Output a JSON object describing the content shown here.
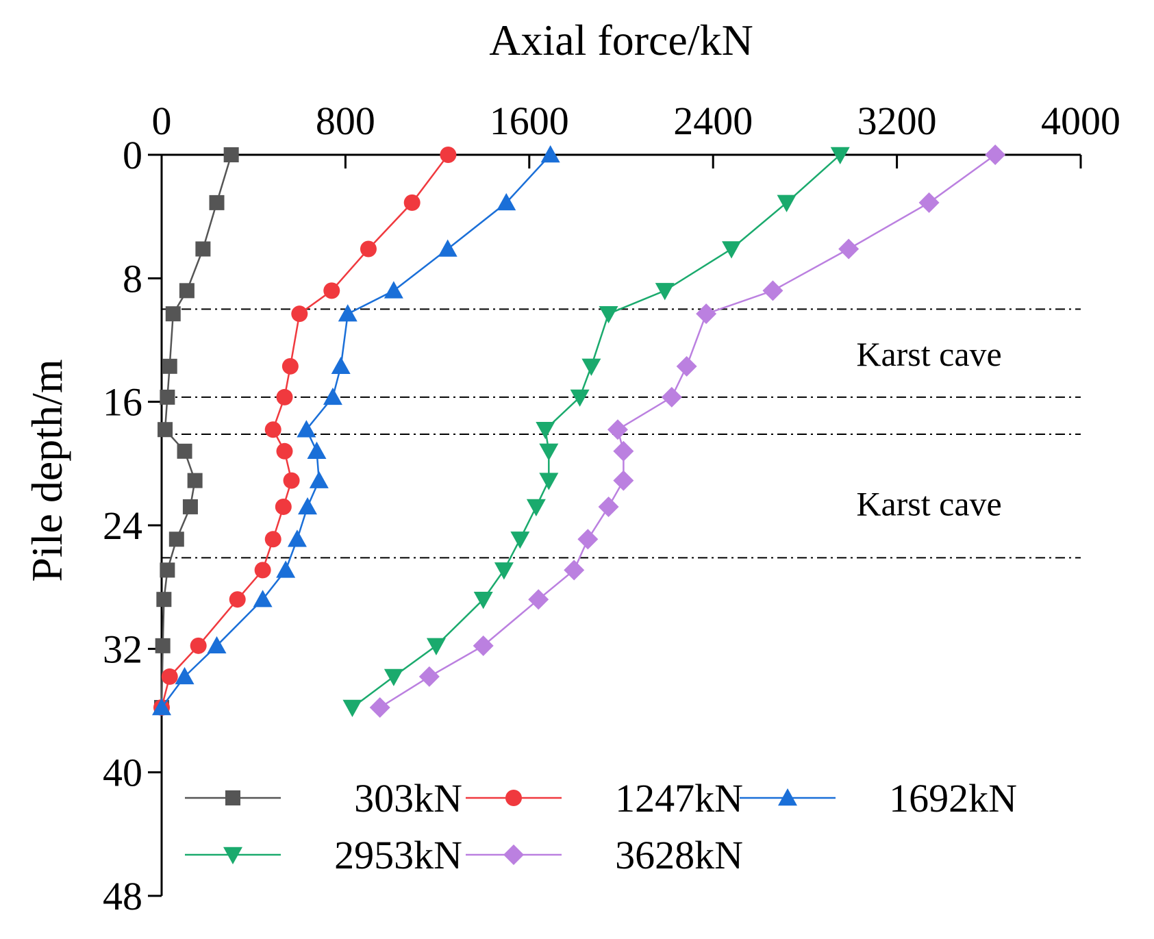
{
  "chart_data": {
    "type": "line",
    "title": "",
    "xlabel": "Axial force/kN",
    "ylabel": "Pile depth/m",
    "xlim": [
      0,
      4000
    ],
    "ylim": [
      0,
      48
    ],
    "xticks": [
      0,
      800,
      1600,
      2400,
      3200,
      4000
    ],
    "yticks": [
      0,
      8,
      16,
      24,
      32,
      40,
      48
    ],
    "x_axis_position": "top",
    "y_axis_inverted": true,
    "legend_position": "bottom-left inside",
    "reference_lines": [
      {
        "y": 10,
        "style": "dash-dot"
      },
      {
        "y": 15.7,
        "style": "dash-dot"
      },
      {
        "y": 18.1,
        "style": "dash-dot"
      },
      {
        "y": 26.1,
        "style": "dash-dot"
      }
    ],
    "annotations": [
      {
        "text": "Karst cave",
        "x": 3340,
        "y": 12.9
      },
      {
        "text": "Karst cave",
        "x": 3340,
        "y": 22.6
      }
    ],
    "series": [
      {
        "name": "303kN",
        "color": "#555555",
        "marker": "square",
        "points": [
          [
            303,
            0
          ],
          [
            240,
            3.1
          ],
          [
            180,
            6.1
          ],
          [
            110,
            8.8
          ],
          [
            50,
            10.3
          ],
          [
            35,
            13.7
          ],
          [
            25,
            15.7
          ],
          [
            15,
            17.8
          ],
          [
            100,
            19.2
          ],
          [
            145,
            21.1
          ],
          [
            125,
            22.8
          ],
          [
            65,
            24.9
          ],
          [
            25,
            26.9
          ],
          [
            10,
            28.8
          ],
          [
            5,
            31.8
          ],
          [
            0,
            35.8
          ]
        ]
      },
      {
        "name": "1247kN",
        "color": "#f0393e",
        "marker": "circle",
        "points": [
          [
            1247,
            0
          ],
          [
            1090,
            3.1
          ],
          [
            900,
            6.1
          ],
          [
            740,
            8.8
          ],
          [
            600,
            10.3
          ],
          [
            560,
            13.7
          ],
          [
            535,
            15.7
          ],
          [
            485,
            17.8
          ],
          [
            535,
            19.2
          ],
          [
            565,
            21.1
          ],
          [
            530,
            22.8
          ],
          [
            485,
            24.9
          ],
          [
            440,
            26.9
          ],
          [
            330,
            28.8
          ],
          [
            160,
            31.8
          ],
          [
            35,
            33.8
          ],
          [
            0,
            35.8
          ]
        ]
      },
      {
        "name": "1692kN",
        "color": "#1a6fd8",
        "marker": "triangle-up",
        "points": [
          [
            1692,
            0
          ],
          [
            1500,
            3.1
          ],
          [
            1245,
            6.1
          ],
          [
            1010,
            8.8
          ],
          [
            810,
            10.3
          ],
          [
            780,
            13.7
          ],
          [
            745,
            15.7
          ],
          [
            630,
            17.8
          ],
          [
            675,
            19.2
          ],
          [
            685,
            21.1
          ],
          [
            635,
            22.8
          ],
          [
            590,
            24.9
          ],
          [
            540,
            26.9
          ],
          [
            440,
            28.8
          ],
          [
            240,
            31.8
          ],
          [
            100,
            33.8
          ],
          [
            0,
            35.8
          ]
        ]
      },
      {
        "name": "2953kN",
        "color": "#1aaa6d",
        "marker": "triangle-down",
        "points": [
          [
            2953,
            0
          ],
          [
            2720,
            3.1
          ],
          [
            2480,
            6.1
          ],
          [
            2190,
            8.8
          ],
          [
            1945,
            10.3
          ],
          [
            1870,
            13.7
          ],
          [
            1820,
            15.7
          ],
          [
            1670,
            17.8
          ],
          [
            1685,
            19.2
          ],
          [
            1685,
            21.1
          ],
          [
            1630,
            22.8
          ],
          [
            1560,
            24.9
          ],
          [
            1490,
            26.9
          ],
          [
            1400,
            28.8
          ],
          [
            1195,
            31.8
          ],
          [
            1010,
            33.8
          ],
          [
            830,
            35.8
          ]
        ]
      },
      {
        "name": "3628kN",
        "color": "#bb80e0",
        "marker": "diamond",
        "points": [
          [
            3628,
            0
          ],
          [
            3340,
            3.1
          ],
          [
            2990,
            6.1
          ],
          [
            2660,
            8.8
          ],
          [
            2370,
            10.3
          ],
          [
            2285,
            13.7
          ],
          [
            2220,
            15.7
          ],
          [
            1985,
            17.8
          ],
          [
            2010,
            19.2
          ],
          [
            2010,
            21.1
          ],
          [
            1945,
            22.8
          ],
          [
            1855,
            24.9
          ],
          [
            1795,
            26.9
          ],
          [
            1640,
            28.8
          ],
          [
            1400,
            31.8
          ],
          [
            1165,
            33.8
          ],
          [
            950,
            35.8
          ]
        ]
      }
    ]
  }
}
